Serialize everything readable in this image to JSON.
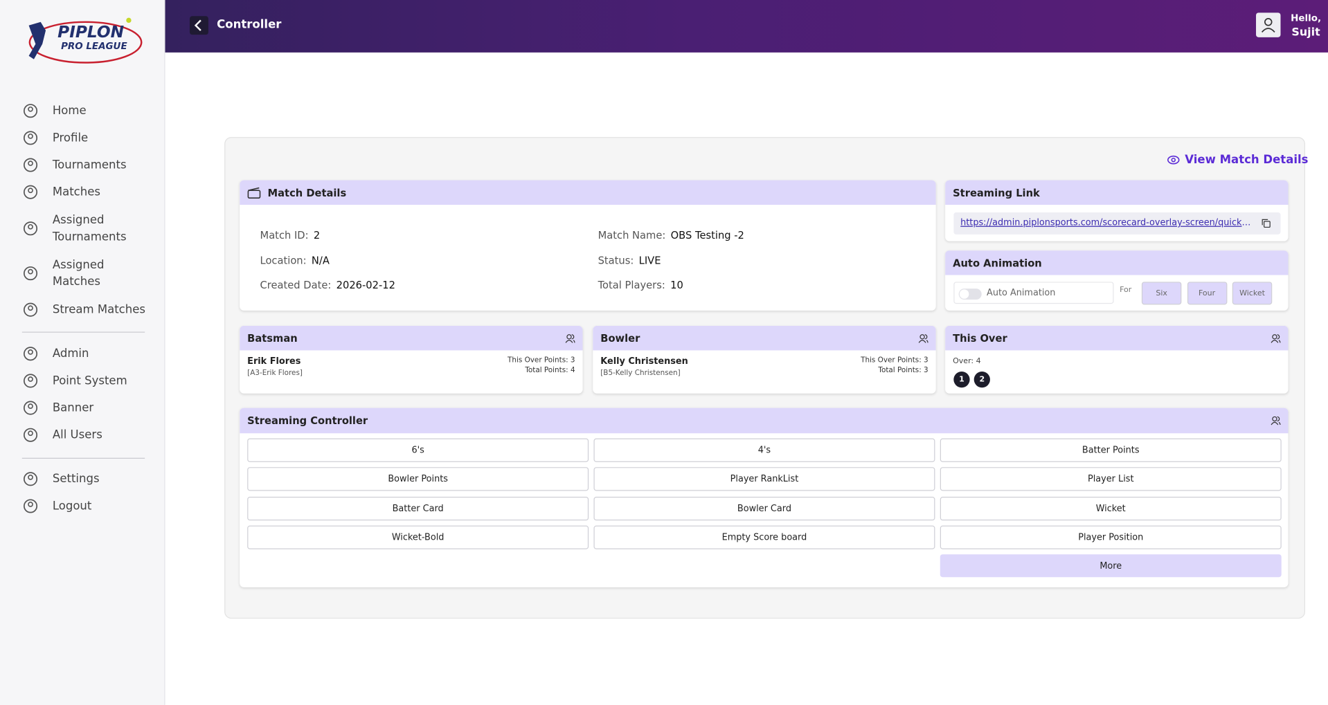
{
  "sidebar": {
    "logo": {
      "line1": "PIPLON",
      "line2": "PRO LEAGUE"
    },
    "nav": [
      "Home",
      "Profile",
      "Tournaments",
      "Matches",
      "Assigned Tournaments",
      "Assigned Matches",
      "Stream Matches"
    ],
    "admin_nav": [
      "Admin",
      "Point System",
      "Banner",
      "All Users"
    ],
    "footer_nav": [
      "Settings",
      "Logout"
    ]
  },
  "header": {
    "title": "Controller",
    "greeting": "Hello,",
    "user": "Sujit"
  },
  "view_details": "View Match Details",
  "match_details": {
    "title": "Match Details",
    "fields": [
      {
        "label": "Match ID:",
        "value": "2"
      },
      {
        "label": "Match Name:",
        "value": "OBS Testing -2"
      },
      {
        "label": "Location:",
        "value": "N/A"
      },
      {
        "label": "Status:",
        "value": "LIVE"
      },
      {
        "label": "Created Date:",
        "value": "2026-02-12"
      },
      {
        "label": "Total Players:",
        "value": "10"
      }
    ]
  },
  "streaming_link": {
    "title": "Streaming Link",
    "url": "https://admin.piplonsports.com/scorecard-overlay-screen/quick_match"
  },
  "auto_animation": {
    "title": "Auto Animation",
    "toggle_label": "Auto Animation",
    "for": "For",
    "buttons": [
      "Six",
      "Four",
      "Wicket"
    ]
  },
  "batsman": {
    "title": "Batsman",
    "name": "Erik Flores",
    "tag": "[A3-Erik Flores]",
    "over_points": "This Over Points: 3",
    "total_points": "Total Points: 4"
  },
  "bowler": {
    "title": "Bowler",
    "name": "Kelly Christensen",
    "tag": "[B5-Kelly Christensen]",
    "over_points": "This Over Points: 3",
    "total_points": "Total Points: 3"
  },
  "this_over": {
    "title": "This Over",
    "over": "Over: 4",
    "balls": [
      "1",
      "2"
    ]
  },
  "controller": {
    "title": "Streaming Controller",
    "buttons": [
      "6's",
      "4's",
      "Batter Points",
      "Bowler Points",
      "Player RankList",
      "Player List",
      "Batter Card",
      "Bowler Card",
      "Wicket",
      "Wicket-Bold",
      "Empty Score board",
      "Player Position"
    ],
    "more": "More"
  }
}
